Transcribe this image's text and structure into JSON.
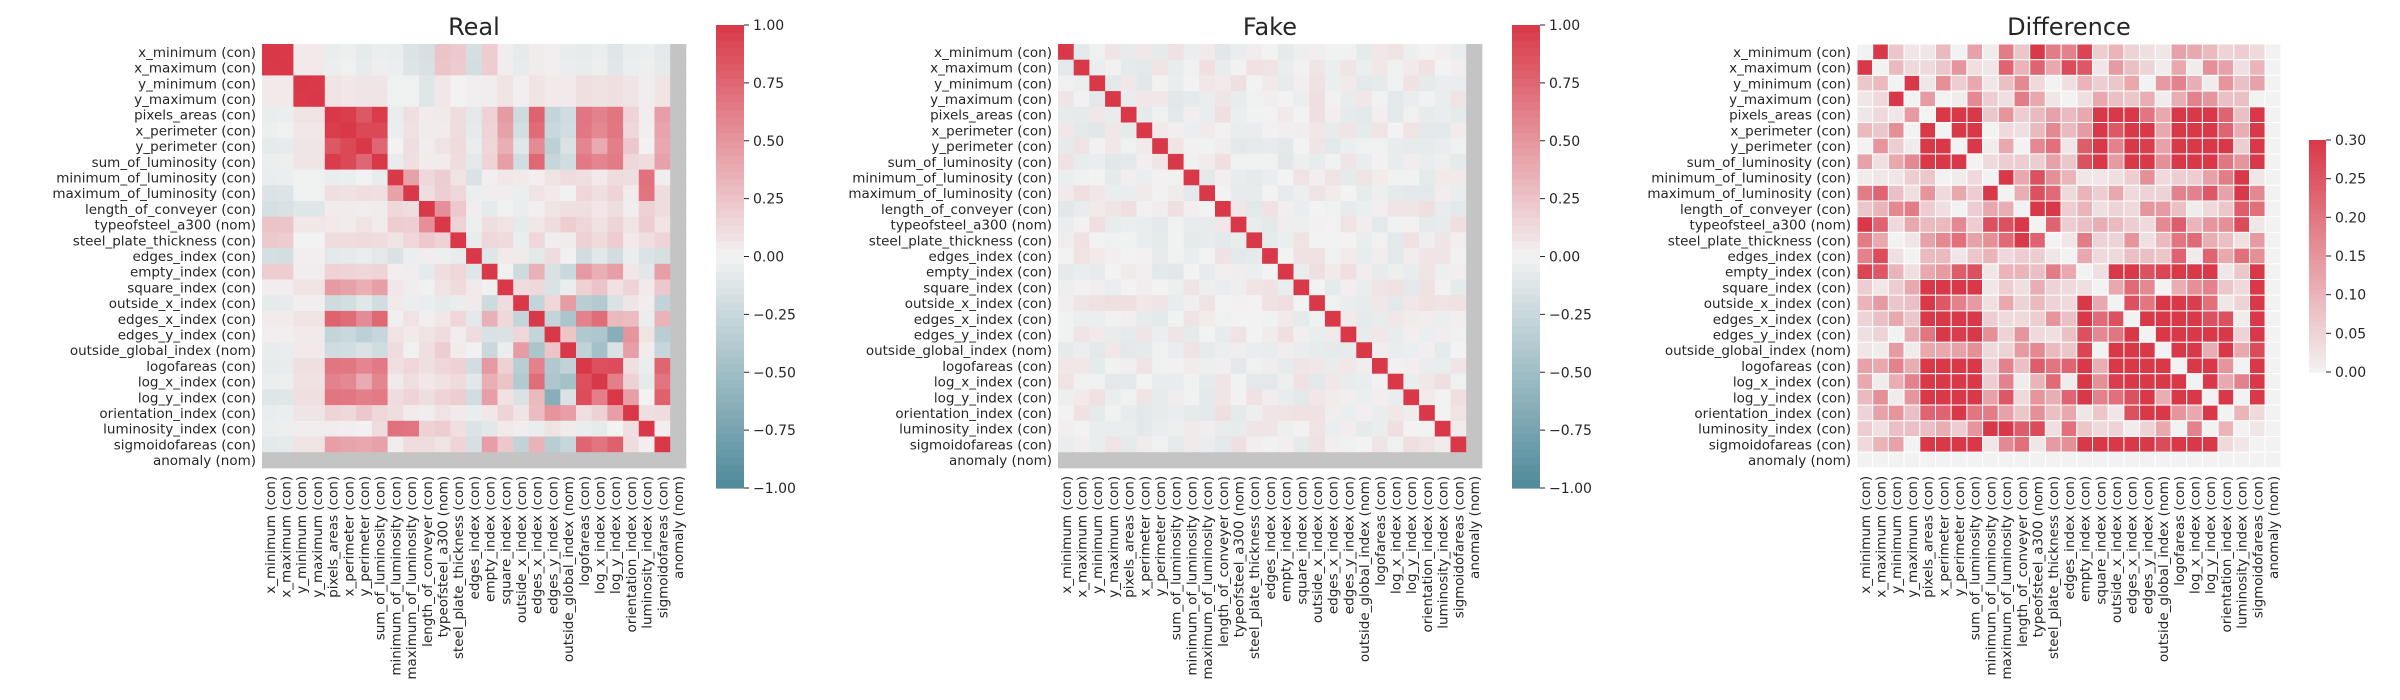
{
  "colors": {
    "negative": "#4f8a9a",
    "neutral": "#f2f2f2",
    "positive": "#d93848",
    "missing": "#c4c4c4",
    "cell_border": "#ffffff"
  },
  "chart_data": [
    {
      "type": "heatmap",
      "title": "Real",
      "vmin": -1,
      "vmax": 1,
      "colormap": "diverging teal-white-red",
      "colorbar_ticks": [
        "1.00",
        "0.75",
        "0.50",
        "0.25",
        "0.00",
        "−0.25",
        "−0.50",
        "−0.75",
        "−1.00"
      ],
      "missing_row": "anomaly (nom)",
      "missing_col": "anomaly (nom)",
      "rows": [
        "x_minimum (con)",
        "x_maximum (con)",
        "y_minimum (con)",
        "y_maximum (con)",
        "pixels_areas (con)",
        "x_perimeter (con)",
        "y_perimeter (con)",
        "sum_of_luminosity (con)",
        "minimum_of_luminosity (con)",
        "maximum_of_luminosity (con)",
        "length_of_conveyer (con)",
        "typeofsteel_a300 (nom)",
        "steel_plate_thickness (con)",
        "edges_index (con)",
        "empty_index (con)",
        "square_index (con)",
        "outside_x_index (con)",
        "edges_x_index (con)",
        "edges_y_index (con)",
        "outside_global_index (nom)",
        "logofareas (con)",
        "log_x_index (con)",
        "log_y_index (con)",
        "orientation_index (con)",
        "luminosity_index (con)",
        "sigmoidofareas (con)",
        "anomaly (nom)"
      ],
      "cols": [
        "x_minimum (con)",
        "x_maximum (con)",
        "y_minimum (con)",
        "y_maximum (con)",
        "pixels_areas (con)",
        "x_perimeter (con)",
        "y_perimeter (con)",
        "sum_of_luminosity (con)",
        "minimum_of_luminosity (con)",
        "maximum_of_luminosity (con)",
        "length_of_conveyer (con)",
        "typeofsteel_a300 (nom)",
        "steel_plate_thickness (con)",
        "edges_index (con)",
        "empty_index (con)",
        "square_index (con)",
        "outside_x_index (con)",
        "edges_x_index (con)",
        "edges_y_index (con)",
        "outside_global_index (nom)",
        "logofareas (con)",
        "log_x_index (con)",
        "log_y_index (con)",
        "orientation_index (con)",
        "luminosity_index (con)",
        "sigmoidofareas (con)",
        "anomaly (nom)"
      ],
      "values": [
        [
          1.0,
          0.99,
          0.05,
          0.05,
          -0.05,
          -0.03,
          -0.08,
          -0.04,
          -0.05,
          -0.14,
          -0.17,
          0.25,
          0.22,
          -0.18,
          0.2,
          0.03,
          -0.08,
          0.04,
          0.02,
          -0.06,
          -0.07,
          -0.04,
          -0.12,
          -0.05,
          -0.04,
          -0.09,
          null
        ],
        [
          0.99,
          1.0,
          0.05,
          0.05,
          -0.04,
          -0.02,
          -0.07,
          -0.03,
          -0.04,
          -0.13,
          -0.16,
          0.24,
          0.21,
          -0.19,
          0.2,
          0.03,
          -0.07,
          0.04,
          0.02,
          -0.05,
          -0.06,
          -0.03,
          -0.11,
          -0.04,
          -0.03,
          -0.08,
          null
        ],
        [
          0.05,
          0.05,
          1.0,
          0.99,
          0.08,
          0.06,
          0.07,
          0.07,
          -0.02,
          -0.02,
          -0.12,
          0.06,
          0.0,
          0.02,
          0.03,
          0.08,
          0.02,
          0.08,
          0.05,
          0.05,
          0.1,
          0.09,
          0.1,
          0.07,
          0.03,
          0.08,
          null
        ],
        [
          0.05,
          0.05,
          0.99,
          1.0,
          0.08,
          0.06,
          0.07,
          0.07,
          -0.02,
          -0.02,
          -0.12,
          0.06,
          0.0,
          0.02,
          0.03,
          0.08,
          0.02,
          0.08,
          0.05,
          0.05,
          0.1,
          0.09,
          0.1,
          0.07,
          0.03,
          0.08,
          null
        ],
        [
          -0.05,
          -0.04,
          0.08,
          0.08,
          1.0,
          0.97,
          0.83,
          0.98,
          -0.05,
          0.1,
          0.04,
          0.05,
          0.12,
          -0.09,
          0.17,
          0.47,
          -0.22,
          0.77,
          -0.28,
          -0.21,
          0.67,
          0.6,
          0.67,
          0.16,
          0.03,
          0.45,
          null
        ],
        [
          -0.03,
          -0.02,
          0.06,
          0.06,
          0.97,
          1.0,
          0.91,
          0.91,
          -0.04,
          0.09,
          0.04,
          0.04,
          0.12,
          -0.08,
          0.16,
          0.43,
          -0.19,
          0.72,
          -0.25,
          -0.2,
          0.66,
          0.57,
          0.66,
          0.14,
          0.02,
          0.42,
          null
        ],
        [
          -0.08,
          -0.07,
          0.07,
          0.07,
          0.83,
          0.91,
          1.0,
          0.75,
          0.0,
          0.11,
          0.03,
          0.08,
          0.13,
          -0.05,
          0.15,
          0.36,
          -0.11,
          0.55,
          -0.33,
          -0.15,
          0.58,
          0.38,
          0.62,
          0.23,
          0.01,
          0.4,
          null
        ],
        [
          -0.04,
          -0.03,
          0.07,
          0.07,
          0.98,
          0.91,
          0.75,
          1.0,
          -0.06,
          0.1,
          0.04,
          0.04,
          0.12,
          -0.09,
          0.16,
          0.45,
          -0.2,
          0.74,
          -0.27,
          -0.21,
          0.65,
          0.58,
          0.64,
          0.15,
          0.12,
          0.43,
          null
        ],
        [
          -0.05,
          -0.04,
          -0.02,
          -0.02,
          -0.05,
          -0.04,
          0.0,
          -0.06,
          1.0,
          0.43,
          0.14,
          0.2,
          0.08,
          -0.15,
          0.02,
          0.06,
          0.05,
          0.02,
          0.08,
          0.12,
          0.1,
          0.05,
          0.12,
          0.11,
          0.69,
          0.03,
          null
        ],
        [
          -0.14,
          -0.13,
          -0.02,
          -0.02,
          0.1,
          0.09,
          0.11,
          0.1,
          0.43,
          1.0,
          0.11,
          0.19,
          0.15,
          -0.04,
          0.03,
          0.03,
          -0.04,
          0.08,
          0.05,
          -0.02,
          0.15,
          0.1,
          0.16,
          0.04,
          0.68,
          0.12,
          null
        ],
        [
          -0.17,
          -0.16,
          -0.12,
          -0.12,
          0.04,
          0.04,
          0.03,
          0.04,
          0.14,
          0.11,
          1.0,
          0.53,
          0.22,
          0.03,
          -0.08,
          -0.02,
          -0.05,
          0.02,
          0.08,
          0.1,
          0.1,
          0.06,
          0.11,
          0.03,
          0.18,
          0.12,
          null
        ],
        [
          0.25,
          0.24,
          0.06,
          0.06,
          0.05,
          0.04,
          0.08,
          0.04,
          0.2,
          0.19,
          0.53,
          1.0,
          0.17,
          -0.03,
          0.11,
          0.08,
          -0.08,
          0.06,
          0.12,
          0.2,
          0.15,
          0.09,
          0.16,
          0.08,
          0.2,
          0.08,
          null
        ],
        [
          0.22,
          0.21,
          0.0,
          0.0,
          0.12,
          0.12,
          0.13,
          0.12,
          0.08,
          0.15,
          0.22,
          0.17,
          1.0,
          -0.06,
          0.15,
          0.13,
          -0.05,
          0.15,
          0.03,
          0.04,
          0.18,
          0.13,
          0.2,
          0.05,
          0.1,
          0.16,
          null
        ],
        [
          -0.18,
          -0.19,
          0.02,
          0.02,
          -0.09,
          -0.08,
          -0.05,
          -0.09,
          -0.15,
          -0.04,
          0.03,
          -0.03,
          -0.06,
          1.0,
          -0.12,
          0.05,
          0.05,
          -0.09,
          0.12,
          0.01,
          -0.2,
          -0.1,
          -0.2,
          -0.05,
          -0.14,
          -0.17,
          null
        ],
        [
          0.2,
          0.2,
          0.03,
          0.03,
          0.17,
          0.16,
          0.15,
          0.16,
          0.02,
          0.03,
          -0.08,
          0.11,
          0.15,
          -0.12,
          1.0,
          -0.02,
          -0.23,
          0.35,
          -0.16,
          -0.25,
          0.48,
          0.36,
          0.45,
          0.06,
          -0.1,
          0.45,
          null
        ],
        [
          0.03,
          0.03,
          0.08,
          0.08,
          0.47,
          0.43,
          0.36,
          0.45,
          0.06,
          0.03,
          -0.02,
          0.08,
          0.13,
          0.05,
          -0.02,
          1.0,
          0.12,
          0.14,
          -0.15,
          -0.05,
          0.18,
          0.25,
          0.09,
          0.16,
          0.05,
          0.23,
          null
        ],
        [
          -0.08,
          -0.07,
          0.02,
          0.02,
          -0.22,
          -0.19,
          -0.11,
          -0.2,
          0.05,
          -0.04,
          -0.05,
          -0.08,
          -0.05,
          0.05,
          -0.23,
          0.12,
          1.0,
          -0.28,
          0.15,
          0.46,
          -0.35,
          -0.38,
          -0.15,
          0.07,
          0.03,
          -0.3,
          null
        ],
        [
          0.04,
          0.04,
          0.08,
          0.08,
          0.77,
          0.72,
          0.55,
          0.74,
          0.02,
          0.08,
          0.02,
          0.06,
          0.15,
          -0.09,
          0.35,
          0.14,
          -0.28,
          1.0,
          -0.28,
          -0.43,
          0.6,
          0.71,
          0.3,
          0.29,
          -0.05,
          0.34,
          null
        ],
        [
          0.02,
          0.02,
          0.05,
          0.05,
          -0.28,
          -0.25,
          -0.33,
          -0.27,
          0.08,
          0.05,
          0.08,
          0.12,
          0.03,
          0.12,
          -0.16,
          -0.15,
          0.15,
          -0.28,
          1.0,
          0.24,
          -0.4,
          -0.42,
          -0.65,
          0.5,
          0.08,
          -0.35,
          null
        ],
        [
          -0.06,
          -0.05,
          0.05,
          0.05,
          -0.21,
          -0.2,
          -0.15,
          -0.21,
          0.12,
          -0.02,
          0.1,
          0.2,
          0.04,
          0.01,
          -0.25,
          -0.05,
          0.46,
          -0.43,
          0.24,
          1.0,
          -0.3,
          -0.48,
          -0.15,
          0.45,
          0.04,
          -0.27,
          null
        ],
        [
          -0.07,
          -0.06,
          0.1,
          0.1,
          0.67,
          0.66,
          0.58,
          0.65,
          0.1,
          0.15,
          0.1,
          0.15,
          0.18,
          -0.2,
          0.48,
          0.18,
          -0.35,
          0.6,
          -0.4,
          -0.3,
          1.0,
          0.87,
          0.89,
          0.1,
          -0.05,
          0.76,
          null
        ],
        [
          -0.04,
          -0.03,
          0.09,
          0.09,
          0.6,
          0.57,
          0.38,
          0.58,
          0.05,
          0.1,
          0.06,
          0.09,
          0.13,
          -0.1,
          0.36,
          0.25,
          -0.38,
          0.71,
          -0.42,
          -0.48,
          0.87,
          1.0,
          0.62,
          0.18,
          -0.08,
          0.68,
          null
        ],
        [
          -0.12,
          -0.11,
          0.1,
          0.1,
          0.67,
          0.66,
          0.62,
          0.64,
          0.12,
          0.16,
          0.11,
          0.16,
          0.2,
          -0.2,
          0.45,
          0.09,
          -0.15,
          0.3,
          -0.65,
          -0.15,
          0.89,
          0.62,
          1.0,
          0.45,
          0.0,
          0.78,
          null
        ],
        [
          -0.05,
          -0.04,
          0.07,
          0.07,
          0.16,
          0.14,
          0.23,
          0.15,
          0.11,
          0.04,
          0.03,
          0.08,
          0.05,
          -0.05,
          0.06,
          0.16,
          0.07,
          0.29,
          0.5,
          0.45,
          0.1,
          0.18,
          0.45,
          1.0,
          0.1,
          0.12,
          null
        ],
        [
          -0.04,
          -0.03,
          0.03,
          0.03,
          0.03,
          0.02,
          0.01,
          0.12,
          0.69,
          0.68,
          0.18,
          0.2,
          0.1,
          -0.14,
          -0.1,
          0.05,
          0.03,
          -0.05,
          0.08,
          0.04,
          -0.05,
          -0.08,
          0.0,
          0.1,
          1.0,
          0.02,
          null
        ],
        [
          -0.09,
          -0.08,
          0.08,
          0.08,
          0.45,
          0.42,
          0.4,
          0.43,
          0.03,
          0.12,
          0.12,
          0.08,
          0.16,
          -0.17,
          0.45,
          0.23,
          -0.3,
          0.34,
          -0.35,
          -0.27,
          0.76,
          0.68,
          0.78,
          0.12,
          0.02,
          1.0,
          null
        ],
        [
          null,
          null,
          null,
          null,
          null,
          null,
          null,
          null,
          null,
          null,
          null,
          null,
          null,
          null,
          null,
          null,
          null,
          null,
          null,
          null,
          null,
          null,
          null,
          null,
          null,
          null,
          null
        ]
      ]
    },
    {
      "type": "heatmap",
      "title": "Fake",
      "vmin": -1,
      "vmax": 1,
      "colormap": "diverging teal-white-red",
      "colorbar_ticks": [
        "1.00",
        "0.75",
        "0.50",
        "0.25",
        "0.00",
        "−0.25",
        "−0.50",
        "−0.75",
        "−1.00"
      ],
      "missing_row": "anomaly (nom)",
      "missing_col": "anomaly (nom)",
      "diagonal_value": 1.0,
      "off_diagonal_range": [
        -0.1,
        0.1
      ],
      "rows": [
        "x_minimum (con)",
        "x_maximum (con)",
        "y_minimum (con)",
        "y_maximum (con)",
        "pixels_areas (con)",
        "x_perimeter (con)",
        "y_perimeter (con)",
        "sum_of_luminosity (con)",
        "minimum_of_luminosity (con)",
        "maximum_of_luminosity (con)",
        "length_of_conveyer (con)",
        "typeofsteel_a300 (nom)",
        "steel_plate_thickness (con)",
        "edges_index (con)",
        "empty_index (con)",
        "square_index (con)",
        "outside_x_index (con)",
        "edges_x_index (con)",
        "edges_y_index (con)",
        "outside_global_index (nom)",
        "logofareas (con)",
        "log_x_index (con)",
        "log_y_index (con)",
        "orientation_index (con)",
        "luminosity_index (con)",
        "sigmoidofareas (con)",
        "anomaly (nom)"
      ],
      "cols": [
        "x_minimum (con)",
        "x_maximum (con)",
        "y_minimum (con)",
        "y_maximum (con)",
        "pixels_areas (con)",
        "x_perimeter (con)",
        "y_perimeter (con)",
        "sum_of_luminosity (con)",
        "minimum_of_luminosity (con)",
        "maximum_of_luminosity (con)",
        "length_of_conveyer (con)",
        "typeofsteel_a300 (nom)",
        "steel_plate_thickness (con)",
        "edges_index (con)",
        "empty_index (con)",
        "square_index (con)",
        "outside_x_index (con)",
        "edges_x_index (con)",
        "edges_y_index (con)",
        "outside_global_index (nom)",
        "logofareas (con)",
        "log_x_index (con)",
        "log_y_index (con)",
        "orientation_index (con)",
        "luminosity_index (con)",
        "sigmoidofareas (con)",
        "anomaly (nom)"
      ]
    },
    {
      "type": "heatmap",
      "title": "Difference",
      "vmin": 0,
      "vmax": 0.3,
      "colormap": "sequential white-red",
      "colorbar_ticks": [
        "0.30",
        "0.25",
        "0.20",
        "0.15",
        "0.10",
        "0.05",
        "0.00"
      ],
      "definition": "absolute difference between Real and Fake correlations",
      "rows": [
        "x_minimum (con)",
        "x_maximum (con)",
        "y_minimum (con)",
        "y_maximum (con)",
        "pixels_areas (con)",
        "x_perimeter (con)",
        "y_perimeter (con)",
        "sum_of_luminosity (con)",
        "minimum_of_luminosity (con)",
        "maximum_of_luminosity (con)",
        "length_of_conveyer (con)",
        "typeofsteel_a300 (nom)",
        "steel_plate_thickness (con)",
        "edges_index (con)",
        "empty_index (con)",
        "square_index (con)",
        "outside_x_index (con)",
        "edges_x_index (con)",
        "edges_y_index (con)",
        "outside_global_index (nom)",
        "logofareas (con)",
        "log_x_index (con)",
        "log_y_index (con)",
        "orientation_index (con)",
        "luminosity_index (con)",
        "sigmoidofareas (con)",
        "anomaly (nom)"
      ],
      "cols": [
        "x_minimum (con)",
        "x_maximum (con)",
        "y_minimum (con)",
        "y_maximum (con)",
        "pixels_areas (con)",
        "x_perimeter (con)",
        "y_perimeter (con)",
        "sum_of_luminosity (con)",
        "minimum_of_luminosity (con)",
        "maximum_of_luminosity (con)",
        "length_of_conveyer (con)",
        "typeofsteel_a300 (nom)",
        "steel_plate_thickness (con)",
        "edges_index (con)",
        "empty_index (con)",
        "square_index (con)",
        "outside_x_index (con)",
        "edges_x_index (con)",
        "edges_y_index (con)",
        "outside_global_index (nom)",
        "logofareas (con)",
        "log_x_index (con)",
        "log_y_index (con)",
        "orientation_index (con)",
        "luminosity_index (con)",
        "sigmoidofareas (con)",
        "anomaly (nom)"
      ]
    }
  ]
}
